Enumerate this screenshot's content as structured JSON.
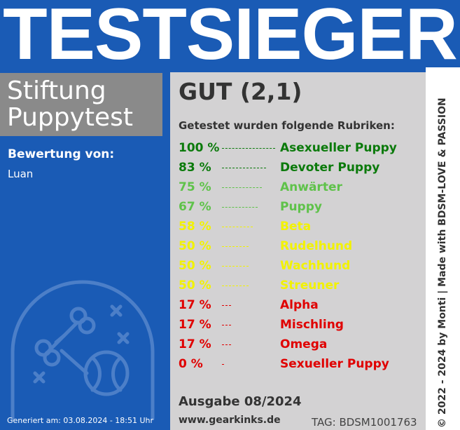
{
  "header": {
    "title": "TESTSIEGER"
  },
  "organization": {
    "line1": "Stiftung",
    "line2": "Puppytest"
  },
  "rating": {
    "label": "Bewertung von:",
    "name": "Luan"
  },
  "generated": "Generiert am: 03.08.2024 - 18:51 Uhr",
  "result": {
    "grade": "GUT (2,1)",
    "subtitle": "Getestet wurden folgende Rubriken:"
  },
  "categories": [
    {
      "percent": "100 %",
      "name": "Asexueller Puppy",
      "color": "#0b7a0b",
      "dots_fraction": 1.0
    },
    {
      "percent": "83 %",
      "name": "Devoter Puppy",
      "color": "#0b7a0b",
      "dots_fraction": 0.83
    },
    {
      "percent": "75 %",
      "name": "Anwärter",
      "color": "#5fc24a",
      "dots_fraction": 0.75
    },
    {
      "percent": "67 %",
      "name": "Puppy",
      "color": "#5fc24a",
      "dots_fraction": 0.67
    },
    {
      "percent": "58 %",
      "name": "Beta",
      "color": "#f2f200",
      "dots_fraction": 0.58
    },
    {
      "percent": "50 %",
      "name": "Rudelhund",
      "color": "#f2f200",
      "dots_fraction": 0.5
    },
    {
      "percent": "50 %",
      "name": "Wachhund",
      "color": "#f2f200",
      "dots_fraction": 0.5
    },
    {
      "percent": "50 %",
      "name": "Streuner",
      "color": "#f2f200",
      "dots_fraction": 0.5
    },
    {
      "percent": "17 %",
      "name": "Alpha",
      "color": "#e00000",
      "dots_fraction": 0.17
    },
    {
      "percent": "17 %",
      "name": "Mischling",
      "color": "#e00000",
      "dots_fraction": 0.17
    },
    {
      "percent": "17 %",
      "name": "Omega",
      "color": "#e00000",
      "dots_fraction": 0.17
    },
    {
      "percent": "0 %",
      "name": "Sexueller Puppy",
      "color": "#e00000",
      "dots_fraction": 0.0
    }
  ],
  "footer": {
    "issue": "Ausgabe 08/2024",
    "website": "www.gearkinks.de",
    "tag": "TAG: BDSM1001763"
  },
  "side_text": "© 2022 - 2024 by Monti | Made with BDSM-LOVE & PASSION",
  "colors": {
    "brand_blue": "#1a5bb5",
    "panel_gray": "#d3d2d3",
    "org_gray": "#8a8a8a"
  },
  "icons": {
    "emblem": "bone-and-ball-emblem-icon"
  }
}
